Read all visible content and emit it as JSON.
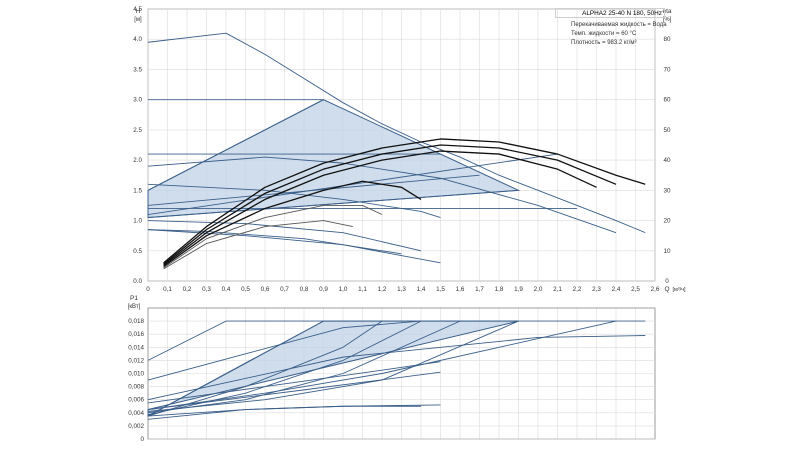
{
  "info": {
    "title": "ALPHA2 25-40 N 180, 50Hz",
    "liquid": "Перекачиваемая жидкость = Вода",
    "temp": "Темп. жидкости = 60 °C",
    "density": "Плотность = 983.2 кг/м³"
  },
  "colors": {
    "grid": "#dcdcdc",
    "curve_blue": "#3b5f8a",
    "curve_black": "#111111",
    "curve_gray": "#555555",
    "fill": "#bfd1e6",
    "axis": "#888888"
  },
  "chart_data": [
    {
      "type": "line",
      "name": "head",
      "ylabel": "H",
      "yunit": "[м]",
      "y2label": "eta",
      "y2unit": "[%]",
      "xlabel": "Q",
      "xunit": "[м³/ч]",
      "xlim": [
        0,
        2.6
      ],
      "ylim": [
        0,
        4.5
      ],
      "y2lim": [
        0,
        90
      ],
      "x_ticks": [
        "0",
        "0,1",
        "0,2",
        "0,3",
        "0,4",
        "0,5",
        "0,6",
        "0,7",
        "0,8",
        "0,9",
        "1,0",
        "1,1",
        "1,2",
        "1,3",
        "1,4",
        "1,5",
        "1,6",
        "1,7",
        "1,8",
        "1,9",
        "2,0",
        "2,1",
        "2,2",
        "2,3",
        "2,4",
        "2,5",
        "2,6"
      ],
      "y_ticks": [
        "0.0",
        "0.5",
        "1.0",
        "1.5",
        "2.0",
        "2.5",
        "3.0",
        "3.5",
        "4.0",
        "4.5"
      ],
      "y2_ticks": [
        "0",
        "10",
        "20",
        "30",
        "40",
        "50",
        "60",
        "70",
        "80"
      ],
      "region": [
        [
          0,
          1.5
        ],
        [
          0.9,
          3.0
        ],
        [
          1.9,
          1.5
        ],
        [
          0,
          1.05
        ]
      ],
      "series": [
        {
          "role": "max-curve",
          "color": "blue",
          "x": [
            0,
            0.4,
            0.6,
            0.8,
            1.0,
            1.2,
            1.4,
            1.6,
            1.8,
            2.0,
            2.2,
            2.4,
            2.55
          ],
          "y": [
            3.95,
            4.1,
            3.75,
            3.35,
            2.95,
            2.6,
            2.3,
            2.05,
            1.75,
            1.5,
            1.25,
            1.0,
            0.8
          ]
        },
        {
          "role": "constant",
          "color": "blue",
          "x": [
            0,
            0.9
          ],
          "y": [
            3.0,
            3.0
          ]
        },
        {
          "role": "constant",
          "color": "blue",
          "x": [
            0,
            1.5
          ],
          "y": [
            2.1,
            2.1
          ]
        },
        {
          "role": "constant",
          "color": "blue",
          "x": [
            0,
            2.2
          ],
          "y": [
            1.2,
            1.2
          ]
        },
        {
          "role": "prop-top",
          "color": "blue",
          "x": [
            0,
            0.9
          ],
          "y": [
            1.5,
            3.0
          ]
        },
        {
          "role": "prop-mid",
          "color": "blue",
          "x": [
            0,
            1.7
          ],
          "y": [
            1.25,
            1.75
          ]
        },
        {
          "role": "prop-low",
          "color": "blue",
          "x": [
            0,
            1.9
          ],
          "y": [
            1.05,
            1.5
          ]
        },
        {
          "role": "prop-a",
          "color": "blue",
          "x": [
            0,
            2.1
          ],
          "y": [
            1.1,
            2.1
          ]
        },
        {
          "role": "decl-1",
          "color": "blue",
          "x": [
            0,
            0.6,
            1.0,
            1.5,
            2.0,
            2.4
          ],
          "y": [
            1.9,
            2.05,
            1.95,
            1.7,
            1.25,
            0.8
          ]
        },
        {
          "role": "decl-2",
          "color": "blue",
          "x": [
            0,
            0.6,
            1.0,
            1.4,
            1.5
          ],
          "y": [
            1.6,
            1.5,
            1.35,
            1.15,
            1.05
          ]
        },
        {
          "role": "decl-3",
          "color": "blue",
          "x": [
            0,
            0.5,
            1.0,
            1.5
          ],
          "y": [
            0.85,
            0.75,
            0.6,
            0.3
          ]
        },
        {
          "role": "decl-4",
          "color": "blue",
          "x": [
            0,
            0.5,
            1.0,
            1.4
          ],
          "y": [
            1.0,
            0.95,
            0.8,
            0.5
          ]
        },
        {
          "role": "decl-5",
          "color": "blue",
          "x": [
            0,
            0.3,
            0.8,
            1.3
          ],
          "y": [
            0.85,
            0.82,
            0.7,
            0.45
          ]
        },
        {
          "role": "eta-1",
          "color": "black",
          "x": [
            0.08,
            0.3,
            0.6,
            0.9,
            1.2,
            1.5,
            1.8,
            2.1,
            2.4,
            2.55
          ],
          "y": [
            0.3,
            0.9,
            1.55,
            1.95,
            2.2,
            2.35,
            2.3,
            2.1,
            1.75,
            1.6
          ]
        },
        {
          "role": "eta-2",
          "color": "black",
          "x": [
            0.08,
            0.3,
            0.6,
            0.9,
            1.2,
            1.5,
            1.8,
            2.1,
            2.4
          ],
          "y": [
            0.28,
            0.85,
            1.45,
            1.85,
            2.1,
            2.25,
            2.2,
            2.0,
            1.6
          ]
        },
        {
          "role": "eta-3",
          "color": "black",
          "x": [
            0.08,
            0.3,
            0.6,
            0.9,
            1.2,
            1.5,
            1.8,
            2.1,
            2.3
          ],
          "y": [
            0.26,
            0.8,
            1.35,
            1.75,
            2.0,
            2.15,
            2.1,
            1.85,
            1.55
          ]
        },
        {
          "role": "eta-4",
          "color": "black",
          "x": [
            0.08,
            0.3,
            0.6,
            0.9,
            1.1,
            1.3,
            1.4
          ],
          "y": [
            0.24,
            0.75,
            1.2,
            1.5,
            1.65,
            1.55,
            1.35
          ]
        },
        {
          "role": "eta-5",
          "color": "gray",
          "x": [
            0.08,
            0.3,
            0.6,
            0.9,
            1.1,
            1.2
          ],
          "y": [
            0.22,
            0.7,
            1.05,
            1.25,
            1.25,
            1.1
          ]
        },
        {
          "role": "eta-6",
          "color": "gray",
          "x": [
            0.08,
            0.3,
            0.6,
            0.9,
            1.05
          ],
          "y": [
            0.2,
            0.62,
            0.9,
            1.0,
            0.9
          ]
        }
      ]
    },
    {
      "type": "line",
      "name": "power",
      "ylabel": "P1",
      "yunit": "[кВт]",
      "xlim": [
        0,
        2.6
      ],
      "ylim": [
        0,
        0.02
      ],
      "y_ticks": [
        "0",
        "0,002",
        "0,004",
        "0,006",
        "0,008",
        "0,010",
        "0,012",
        "0,014",
        "0,016",
        "0,018"
      ],
      "region": [
        [
          0,
          0.0035
        ],
        [
          0.9,
          0.018
        ],
        [
          1.9,
          0.018
        ],
        [
          0,
          0.0045
        ]
      ],
      "series": [
        {
          "role": "max",
          "color": "blue",
          "x": [
            0,
            0.4,
            2.55
          ],
          "y": [
            0.012,
            0.018,
            0.018
          ]
        },
        {
          "role": "p1",
          "color": "blue",
          "x": [
            0,
            0.5,
            1.0,
            1.4,
            1.9
          ],
          "y": [
            0.009,
            0.013,
            0.017,
            0.018,
            0.018
          ]
        },
        {
          "role": "p2",
          "color": "blue",
          "x": [
            0,
            0.4,
            0.9
          ],
          "y": [
            0.0035,
            0.01,
            0.018
          ]
        },
        {
          "role": "p3",
          "color": "blue",
          "x": [
            0,
            0.5,
            1.0,
            1.2
          ],
          "y": [
            0.0035,
            0.008,
            0.014,
            0.018
          ]
        },
        {
          "role": "p4",
          "color": "blue",
          "x": [
            0,
            0.5,
            1.0,
            1.4
          ],
          "y": [
            0.0037,
            0.007,
            0.012,
            0.018
          ]
        },
        {
          "role": "p5",
          "color": "blue",
          "x": [
            0,
            0.5,
            1.0,
            1.6
          ],
          "y": [
            0.004,
            0.006,
            0.01,
            0.018
          ]
        },
        {
          "role": "p6",
          "color": "blue",
          "x": [
            0,
            0.6,
            1.2,
            1.9
          ],
          "y": [
            0.0042,
            0.006,
            0.009,
            0.018
          ]
        },
        {
          "role": "p7",
          "color": "blue",
          "x": [
            0,
            0.6,
            1.2,
            1.8,
            2.4
          ],
          "y": [
            0.0045,
            0.007,
            0.01,
            0.014,
            0.018
          ]
        },
        {
          "role": "p8",
          "color": "blue",
          "x": [
            0,
            1.0,
            2.0,
            2.55
          ],
          "y": [
            0.006,
            0.0125,
            0.0155,
            0.0158
          ]
        },
        {
          "role": "p9",
          "color": "blue",
          "x": [
            0,
            0.8,
            1.5
          ],
          "y": [
            0.0045,
            0.0075,
            0.0102
          ]
        },
        {
          "role": "p10",
          "color": "blue",
          "x": [
            0,
            0.5,
            1.0,
            1.5
          ],
          "y": [
            0.0035,
            0.0045,
            0.005,
            0.0052
          ]
        },
        {
          "role": "p11",
          "color": "blue",
          "x": [
            0,
            0.5,
            1.0,
            1.4
          ],
          "y": [
            0.003,
            0.0045,
            0.005,
            0.005
          ]
        },
        {
          "role": "p12",
          "color": "blue",
          "x": [
            0,
            0.6,
            1.2,
            1.5
          ],
          "y": [
            0.0055,
            0.008,
            0.0105,
            0.0118
          ]
        }
      ]
    }
  ]
}
